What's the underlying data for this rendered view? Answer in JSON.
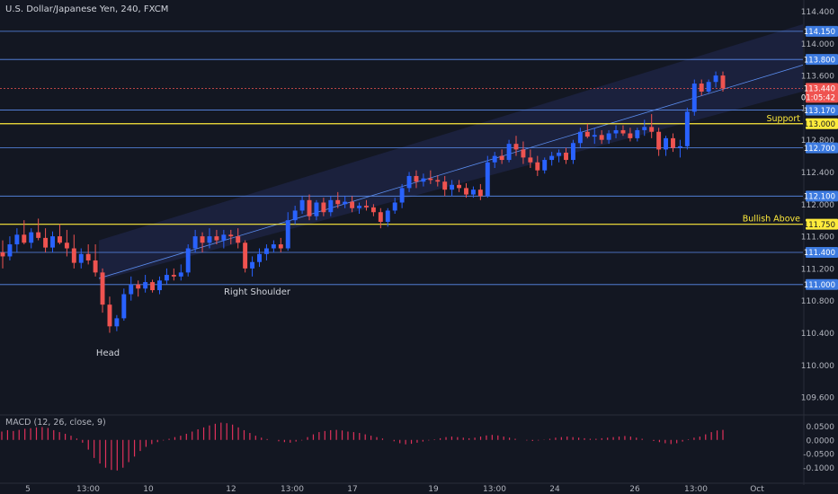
{
  "header": {
    "title": "U.S. Dollar/Japanese Yen, 240, FXCM"
  },
  "colors": {
    "background": "#131722",
    "axis_text": "#b2b5be",
    "up_candle": "#2962ff",
    "down_candle": "#ef5350",
    "level_line": "#5b8def",
    "level_label_bg": "#3d7be0",
    "yellow_line": "#ffeb3b",
    "channel_fill": "#2a3370",
    "macd_hist": "#e0315b"
  },
  "chart_data": [
    {
      "type": "candlestick",
      "title": "U.S. Dollar/Japanese Yen, 240, FXCM",
      "ylim": [
        109.4,
        114.45
      ],
      "y_ticks": [
        "114.400",
        "114.000",
        "113.600",
        "113.200",
        "112.800",
        "112.400",
        "112.000",
        "111.600",
        "111.200",
        "110.800",
        "110.400",
        "110.000",
        "109.600"
      ],
      "x_ticks": [
        "5",
        "13:00",
        "10",
        "12",
        "13:00",
        "17",
        "19",
        "13:00",
        "24",
        "26",
        "13:00",
        "Oct"
      ],
      "grid": false,
      "horizontal_levels": [
        {
          "value": 114.15,
          "label": "114.150",
          "style": "blue"
        },
        {
          "value": 113.8,
          "label": "113.800",
          "style": "blue"
        },
        {
          "value": 113.17,
          "label": "113.170",
          "style": "blue"
        },
        {
          "value": 113.0,
          "label": "113.000",
          "style": "yellow",
          "annotation": "Support"
        },
        {
          "value": 112.7,
          "label": "112.700",
          "style": "blue"
        },
        {
          "value": 112.1,
          "label": "112.100",
          "style": "blue"
        },
        {
          "value": 111.75,
          "label": "111.750",
          "style": "yellow",
          "annotation": "Bullish Above"
        },
        {
          "value": 111.4,
          "label": "111.400",
          "style": "blue"
        },
        {
          "value": 111.0,
          "label": "111.000",
          "style": "blue"
        }
      ],
      "last_price": {
        "value": 113.44,
        "label": "113.440",
        "countdown": "01:05:42"
      },
      "annotations": [
        "Head",
        "Right Shoulder"
      ],
      "candles": [
        {
          "o": 111.4,
          "h": 111.55,
          "l": 111.2,
          "c": 111.35
        },
        {
          "o": 111.35,
          "h": 111.6,
          "l": 111.3,
          "c": 111.5
        },
        {
          "o": 111.5,
          "h": 111.7,
          "l": 111.4,
          "c": 111.62
        },
        {
          "o": 111.62,
          "h": 111.8,
          "l": 111.5,
          "c": 111.52
        },
        {
          "o": 111.52,
          "h": 111.7,
          "l": 111.45,
          "c": 111.65
        },
        {
          "o": 111.65,
          "h": 111.82,
          "l": 111.55,
          "c": 111.58
        },
        {
          "o": 111.58,
          "h": 111.7,
          "l": 111.4,
          "c": 111.46
        },
        {
          "o": 111.46,
          "h": 111.66,
          "l": 111.4,
          "c": 111.6
        },
        {
          "o": 111.6,
          "h": 111.75,
          "l": 111.5,
          "c": 111.52
        },
        {
          "o": 111.52,
          "h": 111.68,
          "l": 111.35,
          "c": 111.45
        },
        {
          "o": 111.45,
          "h": 111.62,
          "l": 111.2,
          "c": 111.27
        },
        {
          "o": 111.27,
          "h": 111.45,
          "l": 111.2,
          "c": 111.38
        },
        {
          "o": 111.38,
          "h": 111.5,
          "l": 111.25,
          "c": 111.3
        },
        {
          "o": 111.3,
          "h": 111.5,
          "l": 111.1,
          "c": 111.15
        },
        {
          "o": 111.15,
          "h": 111.2,
          "l": 110.65,
          "c": 110.75
        },
        {
          "o": 110.75,
          "h": 110.85,
          "l": 110.4,
          "c": 110.48
        },
        {
          "o": 110.48,
          "h": 110.62,
          "l": 110.42,
          "c": 110.58
        },
        {
          "o": 110.58,
          "h": 110.95,
          "l": 110.55,
          "c": 110.88
        },
        {
          "o": 110.88,
          "h": 111.1,
          "l": 110.8,
          "c": 111.0
        },
        {
          "o": 111.0,
          "h": 111.05,
          "l": 110.85,
          "c": 110.95
        },
        {
          "o": 110.95,
          "h": 111.12,
          "l": 110.9,
          "c": 111.03
        },
        {
          "o": 111.03,
          "h": 111.06,
          "l": 110.9,
          "c": 110.93
        },
        {
          "o": 110.93,
          "h": 111.1,
          "l": 110.88,
          "c": 111.05
        },
        {
          "o": 111.05,
          "h": 111.2,
          "l": 111.0,
          "c": 111.12
        },
        {
          "o": 111.12,
          "h": 111.2,
          "l": 111.05,
          "c": 111.1
        },
        {
          "o": 111.1,
          "h": 111.25,
          "l": 111.05,
          "c": 111.15
        },
        {
          "o": 111.15,
          "h": 111.5,
          "l": 111.1,
          "c": 111.45
        },
        {
          "o": 111.45,
          "h": 111.68,
          "l": 111.4,
          "c": 111.6
        },
        {
          "o": 111.6,
          "h": 111.65,
          "l": 111.4,
          "c": 111.52
        },
        {
          "o": 111.52,
          "h": 111.7,
          "l": 111.45,
          "c": 111.6
        },
        {
          "o": 111.6,
          "h": 111.68,
          "l": 111.5,
          "c": 111.55
        },
        {
          "o": 111.55,
          "h": 111.68,
          "l": 111.45,
          "c": 111.62
        },
        {
          "o": 111.62,
          "h": 111.68,
          "l": 111.5,
          "c": 111.6
        },
        {
          "o": 111.6,
          "h": 111.7,
          "l": 111.45,
          "c": 111.52
        },
        {
          "o": 111.52,
          "h": 111.55,
          "l": 111.15,
          "c": 111.2
        },
        {
          "o": 111.2,
          "h": 111.35,
          "l": 111.1,
          "c": 111.28
        },
        {
          "o": 111.28,
          "h": 111.45,
          "l": 111.22,
          "c": 111.38
        },
        {
          "o": 111.38,
          "h": 111.5,
          "l": 111.3,
          "c": 111.45
        },
        {
          "o": 111.45,
          "h": 111.55,
          "l": 111.4,
          "c": 111.5
        },
        {
          "o": 111.5,
          "h": 111.58,
          "l": 111.4,
          "c": 111.45
        },
        {
          "o": 111.45,
          "h": 111.9,
          "l": 111.42,
          "c": 111.8
        },
        {
          "o": 111.8,
          "h": 111.98,
          "l": 111.75,
          "c": 111.92
        },
        {
          "o": 111.92,
          "h": 112.1,
          "l": 111.88,
          "c": 112.05
        },
        {
          "o": 112.05,
          "h": 112.12,
          "l": 111.8,
          "c": 111.85
        },
        {
          "o": 111.85,
          "h": 112.05,
          "l": 111.8,
          "c": 112.02
        },
        {
          "o": 112.02,
          "h": 112.08,
          "l": 111.85,
          "c": 111.9
        },
        {
          "o": 111.9,
          "h": 112.1,
          "l": 111.85,
          "c": 112.05
        },
        {
          "o": 112.05,
          "h": 112.15,
          "l": 111.95,
          "c": 112.0
        },
        {
          "o": 112.0,
          "h": 112.1,
          "l": 111.95,
          "c": 112.03
        },
        {
          "o": 112.03,
          "h": 112.1,
          "l": 111.9,
          "c": 111.95
        },
        {
          "o": 111.95,
          "h": 112.02,
          "l": 111.88,
          "c": 111.98
        },
        {
          "o": 111.98,
          "h": 112.05,
          "l": 111.92,
          "c": 111.96
        },
        {
          "o": 111.96,
          "h": 112.0,
          "l": 111.85,
          "c": 111.9
        },
        {
          "o": 111.9,
          "h": 111.95,
          "l": 111.7,
          "c": 111.78
        },
        {
          "o": 111.78,
          "h": 111.95,
          "l": 111.72,
          "c": 111.92
        },
        {
          "o": 111.92,
          "h": 112.08,
          "l": 111.88,
          "c": 112.02
        },
        {
          "o": 112.02,
          "h": 112.25,
          "l": 111.95,
          "c": 112.2
        },
        {
          "o": 112.2,
          "h": 112.4,
          "l": 112.15,
          "c": 112.35
        },
        {
          "o": 112.35,
          "h": 112.42,
          "l": 112.2,
          "c": 112.28
        },
        {
          "o": 112.28,
          "h": 112.38,
          "l": 112.22,
          "c": 112.32
        },
        {
          "o": 112.32,
          "h": 112.42,
          "l": 112.25,
          "c": 112.3
        },
        {
          "o": 112.3,
          "h": 112.36,
          "l": 112.22,
          "c": 112.28
        },
        {
          "o": 112.28,
          "h": 112.35,
          "l": 112.1,
          "c": 112.18
        },
        {
          "o": 112.18,
          "h": 112.3,
          "l": 112.1,
          "c": 112.24
        },
        {
          "o": 112.24,
          "h": 112.3,
          "l": 112.15,
          "c": 112.2
        },
        {
          "o": 112.2,
          "h": 112.26,
          "l": 112.08,
          "c": 112.12
        },
        {
          "o": 112.12,
          "h": 112.22,
          "l": 112.08,
          "c": 112.18
        },
        {
          "o": 112.18,
          "h": 112.25,
          "l": 112.05,
          "c": 112.1
        },
        {
          "o": 112.1,
          "h": 112.6,
          "l": 112.08,
          "c": 112.52
        },
        {
          "o": 112.52,
          "h": 112.65,
          "l": 112.45,
          "c": 112.6
        },
        {
          "o": 112.6,
          "h": 112.68,
          "l": 112.5,
          "c": 112.55
        },
        {
          "o": 112.55,
          "h": 112.8,
          "l": 112.52,
          "c": 112.75
        },
        {
          "o": 112.75,
          "h": 112.85,
          "l": 112.6,
          "c": 112.68
        },
        {
          "o": 112.68,
          "h": 112.78,
          "l": 112.5,
          "c": 112.58
        },
        {
          "o": 112.58,
          "h": 112.68,
          "l": 112.45,
          "c": 112.52
        },
        {
          "o": 112.52,
          "h": 112.6,
          "l": 112.35,
          "c": 112.42
        },
        {
          "o": 112.42,
          "h": 112.58,
          "l": 112.38,
          "c": 112.55
        },
        {
          "o": 112.55,
          "h": 112.65,
          "l": 112.48,
          "c": 112.6
        },
        {
          "o": 112.6,
          "h": 112.68,
          "l": 112.52,
          "c": 112.64
        },
        {
          "o": 112.64,
          "h": 112.7,
          "l": 112.5,
          "c": 112.55
        },
        {
          "o": 112.55,
          "h": 112.8,
          "l": 112.5,
          "c": 112.76
        },
        {
          "o": 112.76,
          "h": 112.95,
          "l": 112.7,
          "c": 112.9
        },
        {
          "o": 112.9,
          "h": 113.0,
          "l": 112.82,
          "c": 112.84
        },
        {
          "o": 112.84,
          "h": 112.95,
          "l": 112.75,
          "c": 112.86
        },
        {
          "o": 112.86,
          "h": 112.92,
          "l": 112.75,
          "c": 112.8
        },
        {
          "o": 112.8,
          "h": 112.92,
          "l": 112.75,
          "c": 112.88
        },
        {
          "o": 112.88,
          "h": 112.98,
          "l": 112.82,
          "c": 112.92
        },
        {
          "o": 112.92,
          "h": 112.98,
          "l": 112.85,
          "c": 112.88
        },
        {
          "o": 112.88,
          "h": 112.95,
          "l": 112.78,
          "c": 112.82
        },
        {
          "o": 112.82,
          "h": 112.95,
          "l": 112.78,
          "c": 112.92
        },
        {
          "o": 112.92,
          "h": 113.05,
          "l": 112.85,
          "c": 112.96
        },
        {
          "o": 112.96,
          "h": 113.12,
          "l": 112.82,
          "c": 112.9
        },
        {
          "o": 112.9,
          "h": 112.95,
          "l": 112.6,
          "c": 112.68
        },
        {
          "o": 112.68,
          "h": 112.85,
          "l": 112.6,
          "c": 112.82
        },
        {
          "o": 112.82,
          "h": 112.88,
          "l": 112.65,
          "c": 112.7
        },
        {
          "o": 112.7,
          "h": 112.8,
          "l": 112.58,
          "c": 112.72
        },
        {
          "o": 112.72,
          "h": 113.2,
          "l": 112.68,
          "c": 113.15
        },
        {
          "o": 113.15,
          "h": 113.55,
          "l": 113.1,
          "c": 113.5
        },
        {
          "o": 113.5,
          "h": 113.55,
          "l": 113.35,
          "c": 113.4
        },
        {
          "o": 113.4,
          "h": 113.55,
          "l": 113.38,
          "c": 113.52
        },
        {
          "o": 113.52,
          "h": 113.65,
          "l": 113.45,
          "c": 113.6
        },
        {
          "o": 113.6,
          "h": 113.65,
          "l": 113.4,
          "c": 113.44
        }
      ]
    },
    {
      "type": "bar",
      "title": "MACD (12, 26, close, 9)",
      "ylim": [
        -0.13,
        0.08
      ],
      "y_ticks": [
        "0.0500",
        "0.0000",
        "-0.0500",
        "-0.1000"
      ],
      "series": [
        {
          "values": [
            0.03,
            0.035,
            0.032,
            0.036,
            0.04,
            0.042,
            0.045,
            0.046,
            0.043,
            0.035,
            0.028,
            0.022,
            0.015,
            0.005,
            -0.01,
            -0.035,
            -0.065,
            -0.085,
            -0.1,
            -0.108,
            -0.11,
            -0.1,
            -0.08,
            -0.06,
            -0.04,
            -0.025,
            -0.015,
            -0.008,
            -0.002,
            0.004,
            0.01,
            0.015,
            0.022,
            0.03,
            0.038,
            0.045,
            0.052,
            0.058,
            0.062,
            0.06,
            0.055,
            0.045,
            0.035,
            0.025,
            0.015,
            0.008,
            0.003,
            0.0,
            -0.005,
            -0.008,
            -0.01,
            -0.006,
            -0.002,
            0.01,
            0.02,
            0.028,
            0.032,
            0.035,
            0.036,
            0.034,
            0.03,
            0.028,
            0.025,
            0.02,
            0.015,
            0.01,
            0.005,
            0.0,
            -0.005,
            -0.012,
            -0.016,
            -0.014,
            -0.01,
            -0.006,
            -0.002,
            0.002,
            0.006,
            0.01,
            0.012,
            0.01,
            0.008,
            0.006,
            0.008,
            0.012,
            0.016,
            0.018,
            0.016,
            0.012,
            0.008,
            0.004,
            0.0,
            -0.002,
            -0.004,
            -0.002,
            0.001,
            0.004,
            0.008,
            0.01,
            0.012,
            0.01,
            0.008,
            0.006,
            0.004,
            0.004,
            0.006,
            0.008,
            0.01,
            0.012,
            0.014,
            0.012,
            0.008,
            0.004,
            0.0,
            -0.004,
            -0.008,
            -0.012,
            -0.015,
            -0.012,
            -0.006,
            0.002,
            0.008,
            0.012,
            0.02,
            0.028,
            0.034,
            0.036
          ]
        }
      ]
    }
  ]
}
